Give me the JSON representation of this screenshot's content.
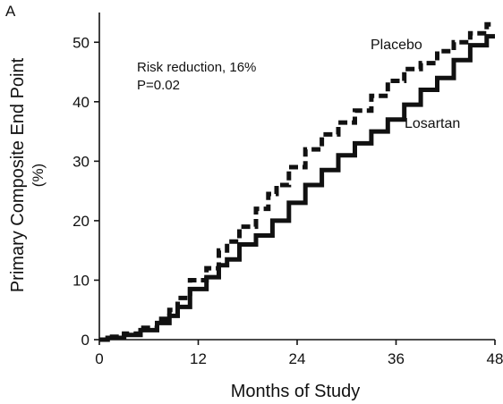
{
  "panel_label": "A",
  "chart_data": {
    "type": "line",
    "xlabel": "Months of Study",
    "ylabel_line1": "Primary Composite End Point",
    "ylabel_line2": "(%)",
    "xlim": [
      0,
      48
    ],
    "ylim": [
      0,
      55
    ],
    "xticks": [
      0,
      12,
      24,
      36,
      48
    ],
    "yticks": [
      0,
      10,
      20,
      30,
      40,
      50
    ],
    "grid": false,
    "annotation_line1": "Risk reduction, 16%",
    "annotation_line2": "P=0.02",
    "series": [
      {
        "name": "Placebo",
        "style": "dashed",
        "x": [
          0,
          2,
          4,
          6,
          8,
          9,
          10,
          12,
          14,
          15,
          16,
          18,
          20,
          21,
          22,
          24,
          26,
          28,
          30,
          32,
          34,
          36,
          38,
          40,
          42,
          44,
          46,
          48
        ],
        "y": [
          0,
          0.5,
          1,
          2,
          3.5,
          5,
          7,
          10,
          12,
          15,
          16.5,
          19,
          22,
          24.5,
          26,
          29,
          32,
          34.5,
          36.5,
          38.5,
          41,
          43.5,
          45.5,
          46.5,
          48.5,
          50,
          51.5,
          53
        ]
      },
      {
        "name": "Losartan",
        "style": "solid",
        "x": [
          0,
          2,
          4,
          6,
          8,
          9,
          10,
          12,
          14,
          15,
          16,
          18,
          20,
          22,
          24,
          26,
          28,
          30,
          32,
          34,
          36,
          38,
          40,
          42,
          44,
          46,
          48
        ],
        "y": [
          0,
          0.3,
          0.8,
          1.6,
          2.8,
          4,
          5.5,
          8.5,
          10.5,
          12.5,
          13.5,
          16,
          17.5,
          20,
          23,
          26,
          28.5,
          31,
          33,
          35,
          37,
          39.5,
          42,
          44,
          47,
          49.5,
          51
        ]
      }
    ]
  }
}
